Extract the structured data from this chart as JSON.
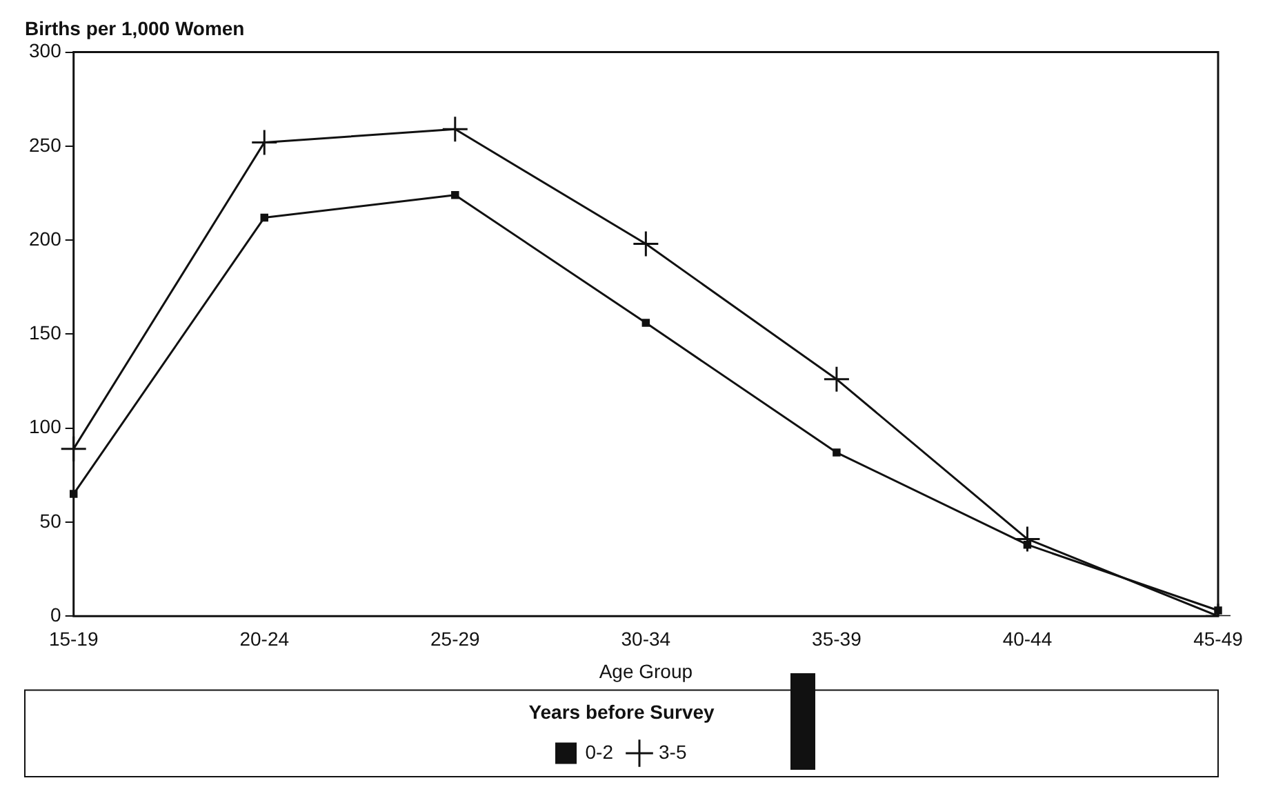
{
  "chart_data": {
    "type": "line",
    "ylabel": "Births per 1,000 Women",
    "xlabel": "Age Group",
    "legend_title": "Years before Survey",
    "categories": [
      "15-19",
      "20-24",
      "25-29",
      "30-34",
      "35-39",
      "40-44",
      "45-49"
    ],
    "series": [
      {
        "name": "0-2",
        "color": "#111111",
        "marker": "square",
        "values": [
          65,
          212,
          224,
          156,
          87,
          38,
          3
        ]
      },
      {
        "name": "3-5",
        "color": "#111111",
        "marker": "cross",
        "values": [
          89,
          252,
          259,
          198,
          126,
          41,
          0
        ]
      }
    ],
    "ylim": [
      0,
      300
    ],
    "yticks": [
      0,
      50,
      100,
      150,
      200,
      250,
      300
    ],
    "grid": false,
    "legend": "bottom",
    "line_style": "solid"
  }
}
